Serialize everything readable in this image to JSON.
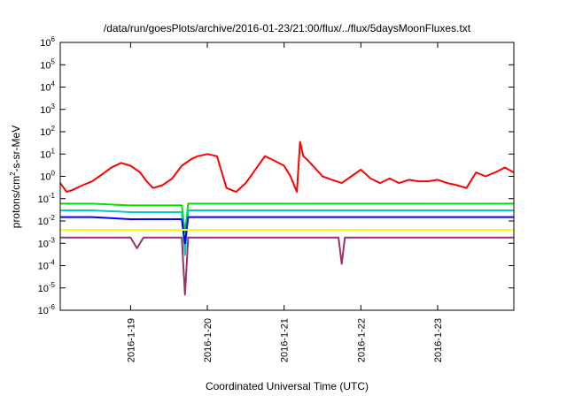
{
  "chart_data": {
    "type": "line",
    "title": "/data/run/goesPlots/archive/2016-01-23/21:00/flux/../flux/5daysMoonFluxes.txt",
    "xlabel": "Coordinated Universal Time (UTC)",
    "ylabel": "protons/cm2-s-sr-MeV",
    "ylabel_parts": {
      "pre": "protons/cm",
      "sup": "2",
      "post": "-s-sr-MeV"
    },
    "y_scale": "log",
    "ylim": [
      1e-06,
      1000000.0
    ],
    "y_ticks": [
      {
        "value": 1e-06,
        "base": "10",
        "exp": "-6"
      },
      {
        "value": 1e-05,
        "base": "10",
        "exp": "-5"
      },
      {
        "value": 0.0001,
        "base": "10",
        "exp": "-4"
      },
      {
        "value": 0.001,
        "base": "10",
        "exp": "-3"
      },
      {
        "value": 0.01,
        "base": "10",
        "exp": "-2"
      },
      {
        "value": 0.1,
        "base": "10",
        "exp": "-1"
      },
      {
        "value": 1,
        "base": "10",
        "exp": "0"
      },
      {
        "value": 10.0,
        "base": "10",
        "exp": "1"
      },
      {
        "value": 100.0,
        "base": "10",
        "exp": "2"
      },
      {
        "value": 1000.0,
        "base": "10",
        "exp": "3"
      },
      {
        "value": 10000.0,
        "base": "10",
        "exp": "4"
      },
      {
        "value": 100000.0,
        "base": "10",
        "exp": "5"
      },
      {
        "value": 1000000.0,
        "base": "10",
        "exp": "6"
      }
    ],
    "xlim": [
      "2016-01-18 02:00",
      "2016-01-23 23:50"
    ],
    "x_ticks": [
      {
        "value": "2016-01-19 00:00",
        "label": "2016-1-19"
      },
      {
        "value": "2016-01-20 00:00",
        "label": "2016-1-20"
      },
      {
        "value": "2016-01-21 00:00",
        "label": "2016-1-21"
      },
      {
        "value": "2016-01-22 00:00",
        "label": "2016-1-22"
      },
      {
        "value": "2016-01-23 00:00",
        "label": "2016-1-23"
      }
    ],
    "grid": false,
    "legend": "none",
    "series": [
      {
        "color": "#ff0000",
        "x": [
          "2016-01-18 02:00",
          "2016-01-18 04:00",
          "2016-01-18 06:00",
          "2016-01-18 09:00",
          "2016-01-18 12:00",
          "2016-01-18 15:00",
          "2016-01-18 18:00",
          "2016-01-18 21:00",
          "2016-01-19 00:00",
          "2016-01-19 03:00",
          "2016-01-19 05:00",
          "2016-01-19 07:00",
          "2016-01-19 10:00",
          "2016-01-19 13:00",
          "2016-01-19 16:00",
          "2016-01-19 19:00",
          "2016-01-19 21:00",
          "2016-01-20 00:00",
          "2016-01-20 03:00",
          "2016-01-20 06:00",
          "2016-01-20 09:00",
          "2016-01-20 12:00",
          "2016-01-20 15:00",
          "2016-01-20 18:00",
          "2016-01-20 21:00",
          "2016-01-21 00:00",
          "2016-01-21 02:00",
          "2016-01-21 04:00",
          "2016-01-21 05:00",
          "2016-01-21 06:00",
          "2016-01-21 07:00",
          "2016-01-21 09:00",
          "2016-01-21 12:00",
          "2016-01-21 15:00",
          "2016-01-21 18:00",
          "2016-01-21 21:00",
          "2016-01-22 00:00",
          "2016-01-22 03:00",
          "2016-01-22 06:00",
          "2016-01-22 09:00",
          "2016-01-22 12:00",
          "2016-01-22 15:00",
          "2016-01-22 18:00",
          "2016-01-22 21:00",
          "2016-01-23 00:00",
          "2016-01-23 03:00",
          "2016-01-23 06:00",
          "2016-01-23 09:00",
          "2016-01-23 12:00",
          "2016-01-23 15:00",
          "2016-01-23 18:00",
          "2016-01-23 21:00",
          "2016-01-23 23:50"
        ],
        "values": [
          0.5,
          0.2,
          0.25,
          0.4,
          0.6,
          1.2,
          2.5,
          4.0,
          3.0,
          1.5,
          0.6,
          0.3,
          0.4,
          0.8,
          3.0,
          6.0,
          8.0,
          10.0,
          8.0,
          0.3,
          0.2,
          0.5,
          2.0,
          8.0,
          5.0,
          3.0,
          1.0,
          0.2,
          35.0,
          8.0,
          6.0,
          3.0,
          1.0,
          0.7,
          0.5,
          1.0,
          2.0,
          0.8,
          0.5,
          0.8,
          0.5,
          0.7,
          0.6,
          0.6,
          0.7,
          0.5,
          0.4,
          0.3,
          1.5,
          1.0,
          1.5,
          2.5,
          1.5
        ]
      },
      {
        "color": "#00e000",
        "x": [
          "2016-01-18 02:00",
          "2016-01-18 12:00",
          "2016-01-19 00:00",
          "2016-01-19 12:00",
          "2016-01-19 16:00",
          "2016-01-19 17:00",
          "2016-01-19 18:00",
          "2016-01-20 00:00",
          "2016-01-20 12:00",
          "2016-01-21 00:00",
          "2016-01-21 12:00",
          "2016-01-22 00:00",
          "2016-01-22 12:00",
          "2016-01-23 00:00",
          "2016-01-23 12:00",
          "2016-01-23 23:50"
        ],
        "values": [
          0.06,
          0.06,
          0.05,
          0.05,
          0.05,
          0.003,
          0.06,
          0.06,
          0.06,
          0.06,
          0.06,
          0.06,
          0.06,
          0.06,
          0.06,
          0.06
        ]
      },
      {
        "color": "#00c8c8",
        "x": [
          "2016-01-18 02:00",
          "2016-01-18 12:00",
          "2016-01-19 00:00",
          "2016-01-19 12:00",
          "2016-01-19 16:00",
          "2016-01-19 17:00",
          "2016-01-19 18:00",
          "2016-01-20 00:00",
          "2016-01-20 12:00",
          "2016-01-21 00:00",
          "2016-01-21 12:00",
          "2016-01-22 00:00",
          "2016-01-22 12:00",
          "2016-01-23 00:00",
          "2016-01-23 12:00",
          "2016-01-23 23:50"
        ],
        "values": [
          0.03,
          0.03,
          0.025,
          0.025,
          0.025,
          0.0003,
          0.03,
          0.03,
          0.03,
          0.03,
          0.03,
          0.03,
          0.03,
          0.03,
          0.03,
          0.03
        ]
      },
      {
        "color": "#0000ff",
        "x": [
          "2016-01-18 02:00",
          "2016-01-18 12:00",
          "2016-01-19 00:00",
          "2016-01-19 12:00",
          "2016-01-19 16:00",
          "2016-01-19 17:00",
          "2016-01-19 18:00",
          "2016-01-20 00:00",
          "2016-01-20 12:00",
          "2016-01-21 00:00",
          "2016-01-21 12:00",
          "2016-01-22 00:00",
          "2016-01-22 12:00",
          "2016-01-23 00:00",
          "2016-01-23 12:00",
          "2016-01-23 23:50"
        ],
        "values": [
          0.015,
          0.015,
          0.012,
          0.012,
          0.012,
          0.001,
          0.015,
          0.015,
          0.015,
          0.015,
          0.015,
          0.015,
          0.015,
          0.015,
          0.015,
          0.015
        ]
      },
      {
        "color": "#ffff00",
        "x": [
          "2016-01-18 02:00",
          "2016-01-19 00:00",
          "2016-01-20 00:00",
          "2016-01-21 00:00",
          "2016-01-22 00:00",
          "2016-01-23 00:00",
          "2016-01-23 23:50"
        ],
        "values": [
          0.004,
          0.004,
          0.004,
          0.004,
          0.004,
          0.004,
          0.004
        ]
      },
      {
        "color": "#993366",
        "x": [
          "2016-01-18 02:00",
          "2016-01-18 12:00",
          "2016-01-19 00:00",
          "2016-01-19 02:00",
          "2016-01-19 04:00",
          "2016-01-19 12:00",
          "2016-01-19 16:00",
          "2016-01-19 17:00",
          "2016-01-19 18:00",
          "2016-01-20 00:00",
          "2016-01-20 12:00",
          "2016-01-21 00:00",
          "2016-01-21 12:00",
          "2016-01-21 17:00",
          "2016-01-21 18:00",
          "2016-01-21 19:00",
          "2016-01-22 00:00",
          "2016-01-22 12:00",
          "2016-01-23 00:00",
          "2016-01-23 12:00",
          "2016-01-23 23:50"
        ],
        "values": [
          0.0018,
          0.0018,
          0.0018,
          0.0006,
          0.0018,
          0.0018,
          0.0018,
          5e-06,
          0.0018,
          0.0018,
          0.0018,
          0.0018,
          0.0018,
          0.0018,
          0.00012,
          0.0018,
          0.0018,
          0.0018,
          0.0018,
          0.0018,
          0.0018
        ]
      }
    ]
  }
}
